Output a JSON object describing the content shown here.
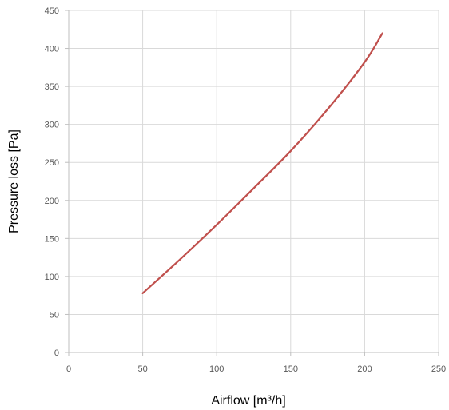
{
  "chart_data": {
    "type": "line",
    "title": "",
    "xlabel": "Airflow [m³/h]",
    "ylabel": "Pressure loss [Pa]",
    "xlim": [
      0,
      250
    ],
    "ylim": [
      0,
      450
    ],
    "x_ticks": [
      0,
      50,
      100,
      150,
      200,
      250
    ],
    "y_ticks": [
      0,
      50,
      100,
      150,
      200,
      250,
      300,
      350,
      400,
      450
    ],
    "grid": true,
    "legend": "none",
    "series": [
      {
        "color": "#c0504d",
        "x": [
          50,
          75,
          100,
          125,
          150,
          175,
          200,
          212
        ],
        "y": [
          78,
          122,
          168,
          216,
          265,
          320,
          382,
          420
        ]
      }
    ]
  }
}
